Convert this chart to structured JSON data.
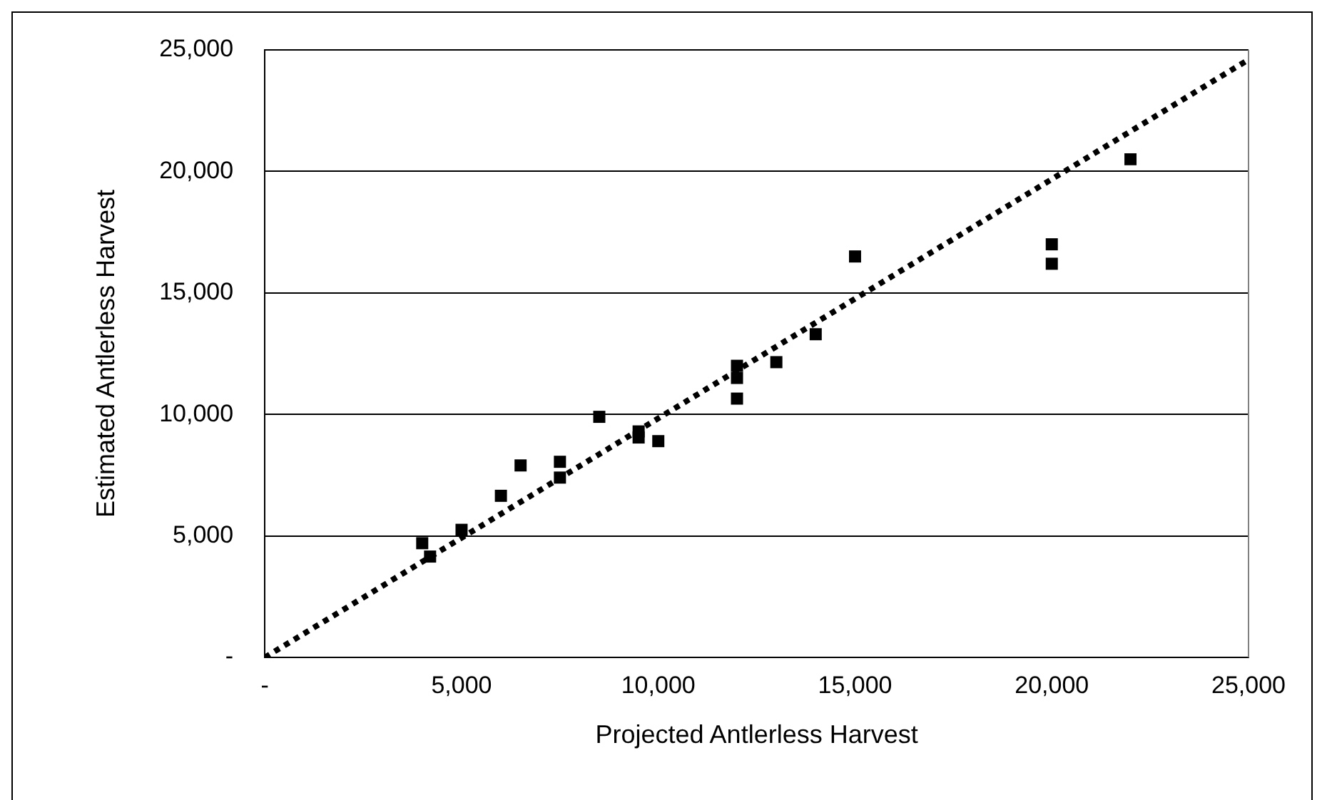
{
  "chart_data": {
    "type": "scatter",
    "xlabel": "Projected Antlerless Harvest",
    "ylabel": "Estimated Antlerless Harvest",
    "xlim": [
      0,
      25000
    ],
    "ylim": [
      0,
      25000
    ],
    "xticks": [
      {
        "value": 0,
        "label": "-"
      },
      {
        "value": 5000,
        "label": "5,000"
      },
      {
        "value": 10000,
        "label": "10,000"
      },
      {
        "value": 15000,
        "label": "15,000"
      },
      {
        "value": 20000,
        "label": "20,000"
      },
      {
        "value": 25000,
        "label": "25,000"
      }
    ],
    "yticks": [
      {
        "value": 0,
        "label": "-"
      },
      {
        "value": 5000,
        "label": "5,000"
      },
      {
        "value": 10000,
        "label": "10,000"
      },
      {
        "value": 15000,
        "label": "15,000"
      },
      {
        "value": 20000,
        "label": "20,000"
      },
      {
        "value": 25000,
        "label": "25,000"
      }
    ],
    "grid": "y",
    "legend": false,
    "marker": "square",
    "series": [
      {
        "color": "#000000",
        "x": [
          4000,
          4200,
          5000,
          6000,
          6500,
          7500,
          7500,
          8500,
          9500,
          9500,
          10000,
          12000,
          12000,
          12000,
          13000,
          14000,
          15000,
          20000,
          20000,
          22000
        ],
        "values": [
          4700,
          4150,
          5250,
          6650,
          7900,
          8050,
          7400,
          9900,
          9300,
          9050,
          8900,
          12000,
          11500,
          10650,
          12150,
          13300,
          16500,
          17000,
          16200,
          20500
        ]
      },
      {
        "type": "line",
        "color": "#000000",
        "line_style": "dotted",
        "marker": "none",
        "x": [
          0,
          25000
        ],
        "values": [
          0,
          24600
        ]
      }
    ]
  }
}
